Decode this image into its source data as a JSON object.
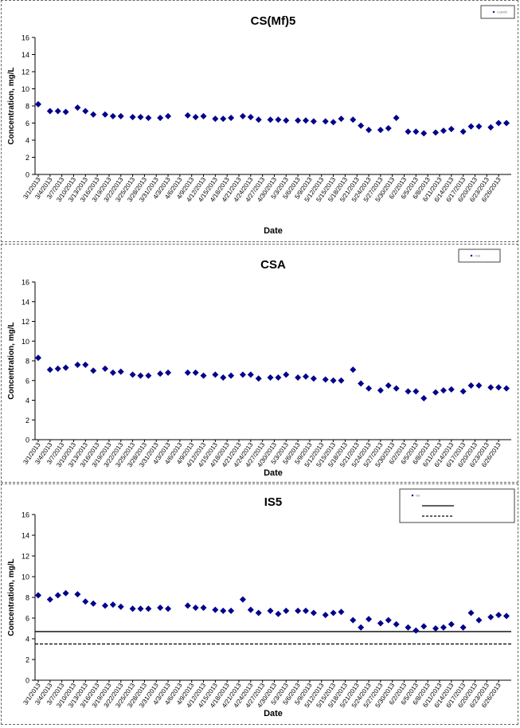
{
  "charts": [
    {
      "type": "scatter",
      "title": "CS(Mf)5",
      "xlabel": "Date",
      "ylabel": "Concentration, mg/L",
      "ylim": [
        0,
        16
      ],
      "yticks": [
        "0",
        "2",
        "4",
        "6",
        "8",
        "10",
        "12",
        "14",
        "16"
      ],
      "xticks": [
        "3/1/2013",
        "3/4/2013",
        "3/7/2013",
        "3/10/2013",
        "3/13/2013",
        "3/16/2013",
        "3/19/2013",
        "3/22/2013",
        "3/25/2013",
        "3/28/2013",
        "3/31/2013",
        "4/3/2013",
        "4/6/2013",
        "4/9/2013",
        "4/12/2013",
        "4/15/2013",
        "4/18/2013",
        "4/21/2013",
        "4/24/2013",
        "4/27/2013",
        "4/30/2013",
        "5/3/2013",
        "5/6/2013",
        "5/9/2013",
        "5/12/2013",
        "5/15/2013",
        "5/18/2013",
        "5/21/2013",
        "5/24/2013",
        "5/27/2013",
        "5/30/2013",
        "6/2/2013",
        "6/5/2013",
        "6/8/2013",
        "6/11/2013",
        "6/14/2013",
        "6/17/2013",
        "6/20/2013",
        "6/23/2013",
        "6/26/2013"
      ],
      "grid": false,
      "legend_position": "top-right",
      "legend": [
        {
          "label": "CS(Mf)5",
          "kind": "marker"
        }
      ],
      "reference_lines": [],
      "series": [
        {
          "name": "CS(Mf)5",
          "color": "#00008b",
          "x": [
            0,
            3,
            5,
            7,
            10,
            12,
            14,
            17,
            19,
            21,
            24,
            26,
            28,
            31,
            33,
            38,
            40,
            42,
            45,
            47,
            49,
            52,
            54,
            56,
            59,
            61,
            63,
            66,
            68,
            70,
            73,
            75,
            77,
            80,
            82,
            84,
            87,
            89,
            91,
            94,
            96,
            98,
            101,
            103,
            105,
            108,
            110,
            112,
            115,
            117,
            119
          ],
          "y": [
            8.2,
            7.4,
            7.4,
            7.3,
            7.8,
            7.4,
            7.0,
            7.0,
            6.8,
            6.8,
            6.7,
            6.7,
            6.6,
            6.6,
            6.8,
            6.9,
            6.7,
            6.8,
            6.5,
            6.5,
            6.6,
            6.8,
            6.7,
            6.4,
            6.4,
            6.4,
            6.3,
            6.3,
            6.3,
            6.2,
            6.2,
            6.1,
            6.5,
            6.4,
            5.7,
            5.2,
            5.2,
            5.4,
            6.6,
            5.0,
            5.0,
            4.8,
            4.9,
            5.1,
            5.3,
            5.0,
            5.6,
            5.6,
            5.5,
            6.0,
            6.0
          ]
        }
      ]
    },
    {
      "type": "scatter",
      "title": "CSA",
      "xlabel": "Date",
      "ylabel": "Concentration, mg/L",
      "ylim": [
        0,
        16
      ],
      "yticks": [
        "0",
        "2",
        "4",
        "6",
        "8",
        "10",
        "12",
        "14",
        "16"
      ],
      "xticks": [
        "3/1/2013",
        "3/4/2013",
        "3/7/2013",
        "3/10/2013",
        "3/13/2013",
        "3/16/2013",
        "3/19/2013",
        "3/22/2013",
        "3/25/2013",
        "3/28/2013",
        "3/31/2013",
        "4/3/2013",
        "4/6/2013",
        "4/9/2013",
        "4/12/2013",
        "4/15/2013",
        "4/18/2013",
        "4/21/2013",
        "4/24/2013",
        "4/27/2013",
        "4/30/2013",
        "5/3/2013",
        "5/6/2013",
        "5/9/2013",
        "5/12/2013",
        "5/15/2013",
        "5/18/2013",
        "5/21/2013",
        "5/24/2013",
        "5/27/2013",
        "5/30/2013",
        "6/2/2013",
        "6/5/2013",
        "6/8/2013",
        "6/11/2013",
        "6/14/2013",
        "6/17/2013",
        "6/20/2013",
        "6/23/2013",
        "6/26/2013"
      ],
      "grid": false,
      "legend_position": "top-right",
      "legend": [
        {
          "label": "CSA",
          "kind": "marker"
        }
      ],
      "reference_lines": [],
      "series": [
        {
          "name": "CSA",
          "color": "#00008b",
          "x": [
            0,
            3,
            5,
            7,
            10,
            12,
            14,
            17,
            19,
            21,
            24,
            26,
            28,
            31,
            33,
            38,
            40,
            42,
            45,
            47,
            49,
            52,
            54,
            56,
            59,
            61,
            63,
            66,
            68,
            70,
            73,
            75,
            77,
            80,
            82,
            84,
            87,
            89,
            91,
            94,
            96,
            98,
            101,
            103,
            105,
            108,
            110,
            112,
            115,
            117,
            119
          ],
          "y": [
            8.3,
            7.1,
            7.2,
            7.3,
            7.6,
            7.6,
            7.0,
            7.2,
            6.8,
            6.9,
            6.6,
            6.5,
            6.5,
            6.7,
            6.8,
            6.8,
            6.8,
            6.5,
            6.6,
            6.3,
            6.5,
            6.6,
            6.6,
            6.2,
            6.3,
            6.3,
            6.6,
            6.3,
            6.4,
            6.2,
            6.1,
            6.0,
            6.0,
            7.1,
            5.7,
            5.2,
            5.0,
            5.5,
            5.2,
            4.9,
            4.9,
            4.2,
            4.8,
            5.0,
            5.1,
            4.9,
            5.5,
            5.5,
            5.3,
            5.3,
            5.2
          ]
        }
      ]
    },
    {
      "type": "scatter",
      "title": "IS5",
      "xlabel": "Date",
      "ylabel": "Concentration, mg/L",
      "ylim": [
        0,
        16
      ],
      "yticks": [
        "0",
        "2",
        "4",
        "6",
        "8",
        "10",
        "12",
        "14",
        "16"
      ],
      "xticks": [
        "3/1/2013",
        "3/4/2013",
        "3/7/2013",
        "3/10/2013",
        "3/13/2013",
        "3/16/2013",
        "3/19/2013",
        "3/22/2013",
        "3/25/2013",
        "3/28/2013",
        "3/31/2013",
        "4/3/2013",
        "4/6/2013",
        "4/9/2013",
        "4/12/2013",
        "4/15/2013",
        "4/18/2013",
        "4/21/2013",
        "4/24/2013",
        "4/27/2013",
        "4/30/2013",
        "5/3/2013",
        "5/6/2013",
        "5/9/2013",
        "5/12/2013",
        "5/15/2013",
        "5/18/2013",
        "5/21/2013",
        "5/24/2013",
        "5/27/2013",
        "5/30/2013",
        "6/2/2013",
        "6/5/2013",
        "6/8/2013",
        "6/11/2013",
        "6/14/2013",
        "6/17/2013",
        "6/20/2013",
        "6/23/2013",
        "6/26/2013"
      ],
      "grid": false,
      "legend_position": "top-right",
      "legend": [
        {
          "label": "IS5",
          "kind": "marker"
        },
        {
          "label": "",
          "kind": "solid"
        },
        {
          "label": "",
          "kind": "dashed"
        }
      ],
      "reference_lines": [
        {
          "y": 4.7,
          "style": "solid"
        },
        {
          "y": 3.5,
          "style": "dashed"
        }
      ],
      "series": [
        {
          "name": "IS5",
          "color": "#00008b",
          "x": [
            0,
            3,
            5,
            7,
            10,
            12,
            14,
            17,
            19,
            21,
            24,
            26,
            28,
            31,
            33,
            38,
            40,
            42,
            45,
            47,
            49,
            52,
            54,
            56,
            59,
            61,
            63,
            66,
            68,
            70,
            73,
            75,
            77,
            80,
            82,
            84,
            87,
            89,
            91,
            94,
            96,
            98,
            101,
            103,
            105,
            108,
            110,
            112,
            115,
            117,
            119
          ],
          "y": [
            8.2,
            7.8,
            8.2,
            8.4,
            8.3,
            7.6,
            7.4,
            7.2,
            7.3,
            7.1,
            6.9,
            6.9,
            6.9,
            7.0,
            6.9,
            7.2,
            7.0,
            7.0,
            6.8,
            6.7,
            6.7,
            7.8,
            6.8,
            6.5,
            6.7,
            6.4,
            6.7,
            6.7,
            6.7,
            6.5,
            6.3,
            6.5,
            6.6,
            5.8,
            5.1,
            5.9,
            5.5,
            5.8,
            5.4,
            5.1,
            4.8,
            5.2,
            5.0,
            5.1,
            5.4,
            5.1,
            6.5,
            5.8,
            6.1,
            6.3,
            6.2
          ]
        }
      ]
    }
  ]
}
